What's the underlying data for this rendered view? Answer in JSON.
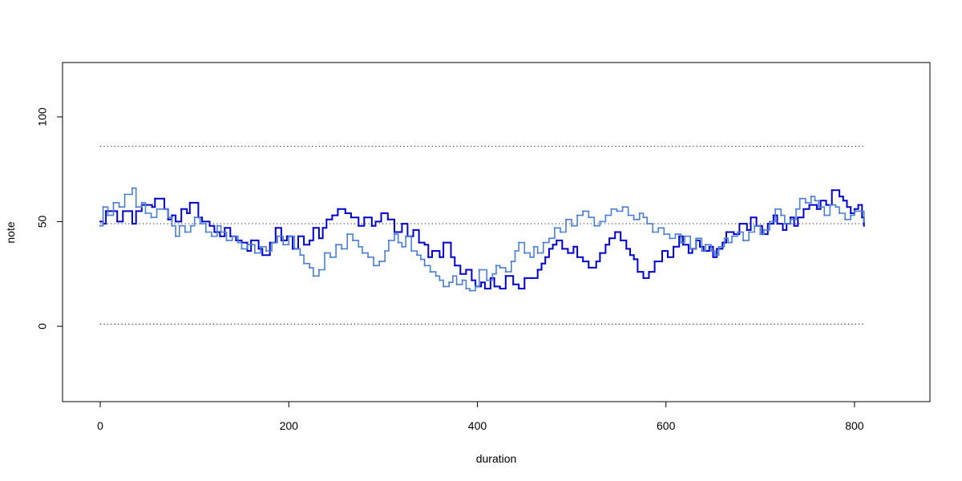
{
  "chart_data": {
    "type": "line",
    "title": "",
    "xlabel": "duration",
    "ylabel": "note",
    "xlim": [
      -40,
      880
    ],
    "ylim": [
      -36,
      126
    ],
    "x_ticks": [
      0,
      200,
      400,
      600,
      800
    ],
    "y_ticks": [
      0,
      50,
      100
    ],
    "x_tick_labels": [
      "0",
      "200",
      "400",
      "600",
      "800"
    ],
    "y_tick_labels": [
      "0",
      "50",
      "100"
    ],
    "grid": false,
    "legend": "none",
    "reference_lines": [
      {
        "y": 1,
        "x_from": 0,
        "x_to": 810,
        "style": "dotted",
        "color": "#333333"
      },
      {
        "y": 49,
        "x_from": 0,
        "x_to": 810,
        "style": "dotted",
        "color": "#333333"
      },
      {
        "y": 86,
        "x_from": 0,
        "x_to": 810,
        "style": "dotted",
        "color": "#333333"
      }
    ],
    "series": [
      {
        "color": "#0000cc",
        "step": true,
        "points": [
          [
            0,
            50
          ],
          [
            3,
            49
          ],
          [
            6,
            55
          ],
          [
            18,
            50
          ],
          [
            24,
            55
          ],
          [
            34,
            49
          ],
          [
            38,
            55
          ],
          [
            44,
            58
          ],
          [
            55,
            57
          ],
          [
            58,
            61
          ],
          [
            68,
            56
          ],
          [
            72,
            51
          ],
          [
            76,
            53
          ],
          [
            80,
            50
          ],
          [
            86,
            56
          ],
          [
            92,
            54
          ],
          [
            95,
            59
          ],
          [
            104,
            52
          ],
          [
            108,
            50
          ],
          [
            116,
            48
          ],
          [
            121,
            45
          ],
          [
            127,
            43
          ],
          [
            132,
            47
          ],
          [
            138,
            43
          ],
          [
            144,
            41
          ],
          [
            150,
            40
          ],
          [
            156,
            36
          ],
          [
            160,
            41
          ],
          [
            168,
            37
          ],
          [
            172,
            34
          ],
          [
            180,
            40
          ],
          [
            186,
            47
          ],
          [
            192,
            41
          ],
          [
            198,
            43
          ],
          [
            204,
            37
          ],
          [
            210,
            43
          ],
          [
            216,
            39
          ],
          [
            222,
            41
          ],
          [
            226,
            47
          ],
          [
            232,
            42
          ],
          [
            236,
            47
          ],
          [
            240,
            51
          ],
          [
            246,
            53
          ],
          [
            252,
            56
          ],
          [
            260,
            54
          ],
          [
            266,
            52
          ],
          [
            274,
            48
          ],
          [
            280,
            52
          ],
          [
            288,
            48
          ],
          [
            292,
            50
          ],
          [
            298,
            54
          ],
          [
            305,
            51
          ],
          [
            312,
            45
          ],
          [
            320,
            49
          ],
          [
            326,
            43
          ],
          [
            332,
            46
          ],
          [
            338,
            40
          ],
          [
            344,
            39
          ],
          [
            348,
            33
          ],
          [
            352,
            36
          ],
          [
            360,
            33
          ],
          [
            364,
            40
          ],
          [
            372,
            33
          ],
          [
            376,
            29
          ],
          [
            382,
            25
          ],
          [
            388,
            27
          ],
          [
            394,
            22
          ],
          [
            398,
            19
          ],
          [
            404,
            21
          ],
          [
            408,
            18
          ],
          [
            414,
            23
          ],
          [
            418,
            19
          ],
          [
            424,
            18
          ],
          [
            430,
            24
          ],
          [
            438,
            20
          ],
          [
            444,
            18
          ],
          [
            450,
            23
          ],
          [
            458,
            23
          ],
          [
            464,
            27
          ],
          [
            468,
            30
          ],
          [
            472,
            33
          ],
          [
            476,
            37
          ],
          [
            480,
            39
          ],
          [
            484,
            41
          ],
          [
            490,
            37
          ],
          [
            496,
            35
          ],
          [
            502,
            38
          ],
          [
            506,
            33
          ],
          [
            512,
            31
          ],
          [
            518,
            28
          ],
          [
            526,
            31
          ],
          [
            530,
            35
          ],
          [
            536,
            39
          ],
          [
            540,
            42
          ],
          [
            546,
            45
          ],
          [
            552,
            41
          ],
          [
            558,
            37
          ],
          [
            562,
            34
          ],
          [
            566,
            32
          ],
          [
            570,
            26
          ],
          [
            576,
            23
          ],
          [
            582,
            26
          ],
          [
            588,
            31
          ],
          [
            596,
            36
          ],
          [
            602,
            33
          ],
          [
            608,
            38
          ],
          [
            614,
            43
          ],
          [
            618,
            39
          ],
          [
            624,
            35
          ],
          [
            628,
            37
          ],
          [
            632,
            41
          ],
          [
            636,
            38
          ],
          [
            640,
            36
          ],
          [
            646,
            38
          ],
          [
            650,
            33
          ],
          [
            654,
            37
          ],
          [
            660,
            40
          ],
          [
            664,
            45
          ],
          [
            672,
            44
          ],
          [
            678,
            49
          ],
          [
            686,
            46
          ],
          [
            690,
            52
          ],
          [
            696,
            48
          ],
          [
            702,
            44
          ],
          [
            708,
            49
          ],
          [
            714,
            53
          ],
          [
            718,
            49
          ],
          [
            724,
            46
          ],
          [
            728,
            49
          ],
          [
            732,
            52
          ],
          [
            736,
            48
          ],
          [
            740,
            52
          ],
          [
            746,
            56
          ],
          [
            752,
            58
          ],
          [
            760,
            56
          ],
          [
            764,
            60
          ],
          [
            770,
            58
          ],
          [
            776,
            65
          ],
          [
            784,
            62
          ],
          [
            788,
            60
          ],
          [
            792,
            57
          ],
          [
            796,
            54
          ],
          [
            800,
            56
          ],
          [
            804,
            58
          ],
          [
            808,
            52
          ],
          [
            810,
            48
          ]
        ]
      },
      {
        "color": "#4a7fd4",
        "step": true,
        "points": [
          [
            0,
            48
          ],
          [
            3,
            57
          ],
          [
            8,
            53
          ],
          [
            14,
            59
          ],
          [
            20,
            57
          ],
          [
            26,
            63
          ],
          [
            34,
            66
          ],
          [
            38,
            57
          ],
          [
            44,
            59
          ],
          [
            48,
            54
          ],
          [
            54,
            52
          ],
          [
            60,
            56
          ],
          [
            68,
            56
          ],
          [
            72,
            52
          ],
          [
            76,
            48
          ],
          [
            80,
            43
          ],
          [
            84,
            48
          ],
          [
            90,
            45
          ],
          [
            96,
            48
          ],
          [
            100,
            52
          ],
          [
            106,
            49
          ],
          [
            112,
            45
          ],
          [
            118,
            43
          ],
          [
            124,
            48
          ],
          [
            128,
            45
          ],
          [
            134,
            41
          ],
          [
            140,
            43
          ],
          [
            146,
            40
          ],
          [
            150,
            37
          ],
          [
            156,
            39
          ],
          [
            164,
            35
          ],
          [
            170,
            38
          ],
          [
            176,
            36
          ],
          [
            182,
            40
          ],
          [
            188,
            43
          ],
          [
            194,
            39
          ],
          [
            200,
            43
          ],
          [
            206,
            37
          ],
          [
            212,
            34
          ],
          [
            216,
            30
          ],
          [
            222,
            28
          ],
          [
            226,
            24
          ],
          [
            232,
            27
          ],
          [
            238,
            35
          ],
          [
            244,
            33
          ],
          [
            250,
            39
          ],
          [
            256,
            37
          ],
          [
            262,
            44
          ],
          [
            268,
            41
          ],
          [
            274,
            38
          ],
          [
            278,
            35
          ],
          [
            284,
            33
          ],
          [
            290,
            29
          ],
          [
            296,
            31
          ],
          [
            302,
            36
          ],
          [
            306,
            41
          ],
          [
            312,
            44
          ],
          [
            316,
            40
          ],
          [
            320,
            38
          ],
          [
            324,
            43
          ],
          [
            330,
            36
          ],
          [
            336,
            34
          ],
          [
            340,
            32
          ],
          [
            344,
            29
          ],
          [
            350,
            26
          ],
          [
            356,
            24
          ],
          [
            360,
            22
          ],
          [
            364,
            19
          ],
          [
            370,
            21
          ],
          [
            374,
            24
          ],
          [
            378,
            20
          ],
          [
            384,
            22
          ],
          [
            388,
            18
          ],
          [
            392,
            17
          ],
          [
            398,
            19
          ],
          [
            402,
            27
          ],
          [
            410,
            22
          ],
          [
            416,
            25
          ],
          [
            420,
            29
          ],
          [
            424,
            28
          ],
          [
            430,
            26
          ],
          [
            436,
            31
          ],
          [
            440,
            36
          ],
          [
            444,
            40
          ],
          [
            450,
            35
          ],
          [
            456,
            33
          ],
          [
            460,
            38
          ],
          [
            464,
            35
          ],
          [
            470,
            40
          ],
          [
            476,
            42
          ],
          [
            482,
            47
          ],
          [
            488,
            45
          ],
          [
            494,
            51
          ],
          [
            500,
            48
          ],
          [
            506,
            53
          ],
          [
            512,
            55
          ],
          [
            518,
            52
          ],
          [
            524,
            48
          ],
          [
            530,
            50
          ],
          [
            536,
            53
          ],
          [
            542,
            56
          ],
          [
            548,
            55
          ],
          [
            554,
            57
          ],
          [
            560,
            53
          ],
          [
            566,
            51
          ],
          [
            572,
            54
          ],
          [
            576,
            52
          ],
          [
            580,
            49
          ],
          [
            586,
            45
          ],
          [
            592,
            47
          ],
          [
            598,
            44
          ],
          [
            604,
            42
          ],
          [
            610,
            44
          ],
          [
            616,
            40
          ],
          [
            620,
            43
          ],
          [
            626,
            37
          ],
          [
            632,
            42
          ],
          [
            638,
            36
          ],
          [
            642,
            39
          ],
          [
            648,
            36
          ],
          [
            652,
            34
          ],
          [
            656,
            38
          ],
          [
            662,
            42
          ],
          [
            666,
            40
          ],
          [
            670,
            43
          ],
          [
            676,
            45
          ],
          [
            682,
            41
          ],
          [
            688,
            45
          ],
          [
            694,
            48
          ],
          [
            700,
            44
          ],
          [
            704,
            46
          ],
          [
            710,
            50
          ],
          [
            716,
            56
          ],
          [
            722,
            53
          ],
          [
            726,
            49
          ],
          [
            732,
            51
          ],
          [
            738,
            56
          ],
          [
            742,
            61
          ],
          [
            748,
            59
          ],
          [
            754,
            62
          ],
          [
            758,
            60
          ],
          [
            762,
            57
          ],
          [
            768,
            53
          ],
          [
            774,
            58
          ],
          [
            780,
            57
          ],
          [
            784,
            54
          ],
          [
            790,
            51
          ],
          [
            796,
            53
          ],
          [
            800,
            55
          ],
          [
            810,
            50
          ]
        ]
      }
    ]
  }
}
